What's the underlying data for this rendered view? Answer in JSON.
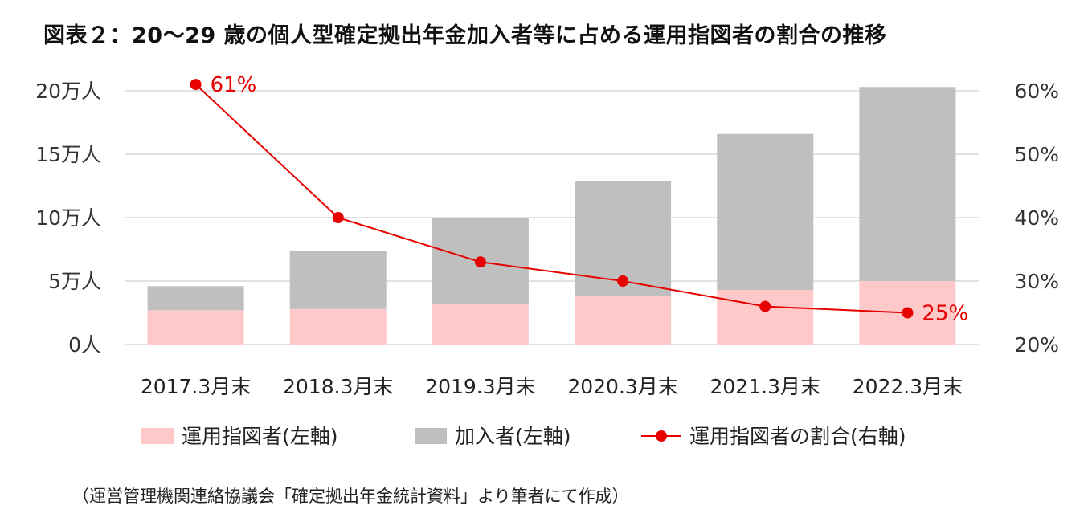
{
  "title": "図表２：20～29 歳の個人型確定拠出年金加入者等に占める運用指図者の割合の推移",
  "source_note": "（運営管理機関連絡協議会「確定拠出年金統計資料」より筆者にて作成）",
  "colors": {
    "instructors": "#ffc9c9",
    "members": "#bfbfbf",
    "ratio": "#e60000",
    "grid": "#d9d9d9"
  },
  "chart_data": {
    "type": "bar",
    "stacked": true,
    "categories": [
      "2017.3月末",
      "2018.3月末",
      "2019.3月末",
      "2020.3月末",
      "2021.3月末",
      "2022.3月末"
    ],
    "series": [
      {
        "name": "運用指図者(左軸)",
        "axis": "left",
        "type": "bar",
        "values": [
          2.7,
          2.8,
          3.2,
          3.8,
          4.3,
          5.0
        ]
      },
      {
        "name": "加入者(左軸)",
        "axis": "left",
        "type": "bar",
        "values": [
          1.9,
          4.6,
          6.8,
          9.1,
          12.3,
          15.3
        ]
      },
      {
        "name": "運用指図者の割合(右軸)",
        "axis": "right",
        "type": "line",
        "values": [
          61,
          40,
          33,
          30,
          26,
          25
        ]
      }
    ],
    "y_left": {
      "range": [
        0,
        20
      ],
      "ticks": [
        "0人",
        "5万人",
        "10万人",
        "15万人",
        "20万人"
      ]
    },
    "y_right": {
      "range": [
        20,
        60
      ],
      "ticks": [
        "20%",
        "30%",
        "40%",
        "50%",
        "60%"
      ]
    },
    "data_labels": [
      {
        "series": 2,
        "index": 0,
        "text": "61%"
      },
      {
        "series": 2,
        "index": 5,
        "text": "25%"
      }
    ],
    "grid": true,
    "legend_position": "bottom"
  }
}
